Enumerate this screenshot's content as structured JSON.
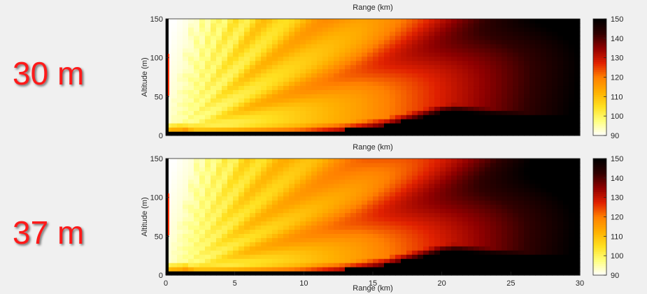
{
  "labels": {
    "top": "30 m",
    "bottom": "37 m"
  },
  "colorscale": [
    "#ffffff",
    "#ffff80",
    "#ffe020",
    "#ffb000",
    "#ff8000",
    "#e02000",
    "#900000",
    "#300000",
    "#000000"
  ],
  "chart_data": [
    {
      "type": "heatmap",
      "title": "Range (km)",
      "xlabel": "",
      "ylabel": "Altitude (m)",
      "xlim": [
        0,
        30
      ],
      "ylim": [
        0,
        150
      ],
      "yticks": [
        0,
        50,
        100,
        150
      ],
      "colorbar": {
        "range": [
          90,
          150
        ],
        "ticks": [
          90,
          100,
          110,
          120,
          130,
          140,
          150
        ]
      },
      "terrain": [
        [
          0,
          8
        ],
        [
          1.5,
          8
        ],
        [
          2,
          5
        ],
        [
          5,
          4
        ],
        [
          10,
          5
        ],
        [
          13,
          8
        ],
        [
          16,
          14
        ],
        [
          18,
          22
        ],
        [
          20,
          30
        ],
        [
          21,
          31
        ],
        [
          24,
          24
        ],
        [
          27,
          18
        ],
        [
          30,
          15
        ]
      ],
      "lobe_angles": [
        0.35,
        0.75,
        1.2,
        1.7,
        2.3,
        3.1,
        4.2
      ]
    },
    {
      "type": "heatmap",
      "title": "Range (km)",
      "xlabel": "Range (km)",
      "ylabel": "Altitude (m)",
      "xlim": [
        0,
        30
      ],
      "ylim": [
        0,
        150
      ],
      "xticks": [
        0,
        5,
        10,
        15,
        20,
        25,
        30
      ],
      "yticks": [
        0,
        50,
        100,
        150
      ],
      "colorbar": {
        "range": [
          90,
          150
        ],
        "ticks": [
          90,
          100,
          110,
          120,
          130,
          140,
          150
        ]
      },
      "terrain": [
        [
          0,
          8
        ],
        [
          1.5,
          8
        ],
        [
          2,
          5
        ],
        [
          5,
          4
        ],
        [
          10,
          5
        ],
        [
          13,
          8
        ],
        [
          16,
          14
        ],
        [
          18,
          22
        ],
        [
          20,
          30
        ],
        [
          21,
          31
        ],
        [
          24,
          24
        ],
        [
          27,
          18
        ],
        [
          30,
          15
        ]
      ],
      "lobe_angles": [
        0.3,
        0.62,
        1.0,
        1.45,
        2.0,
        2.7,
        3.6
      ]
    }
  ]
}
